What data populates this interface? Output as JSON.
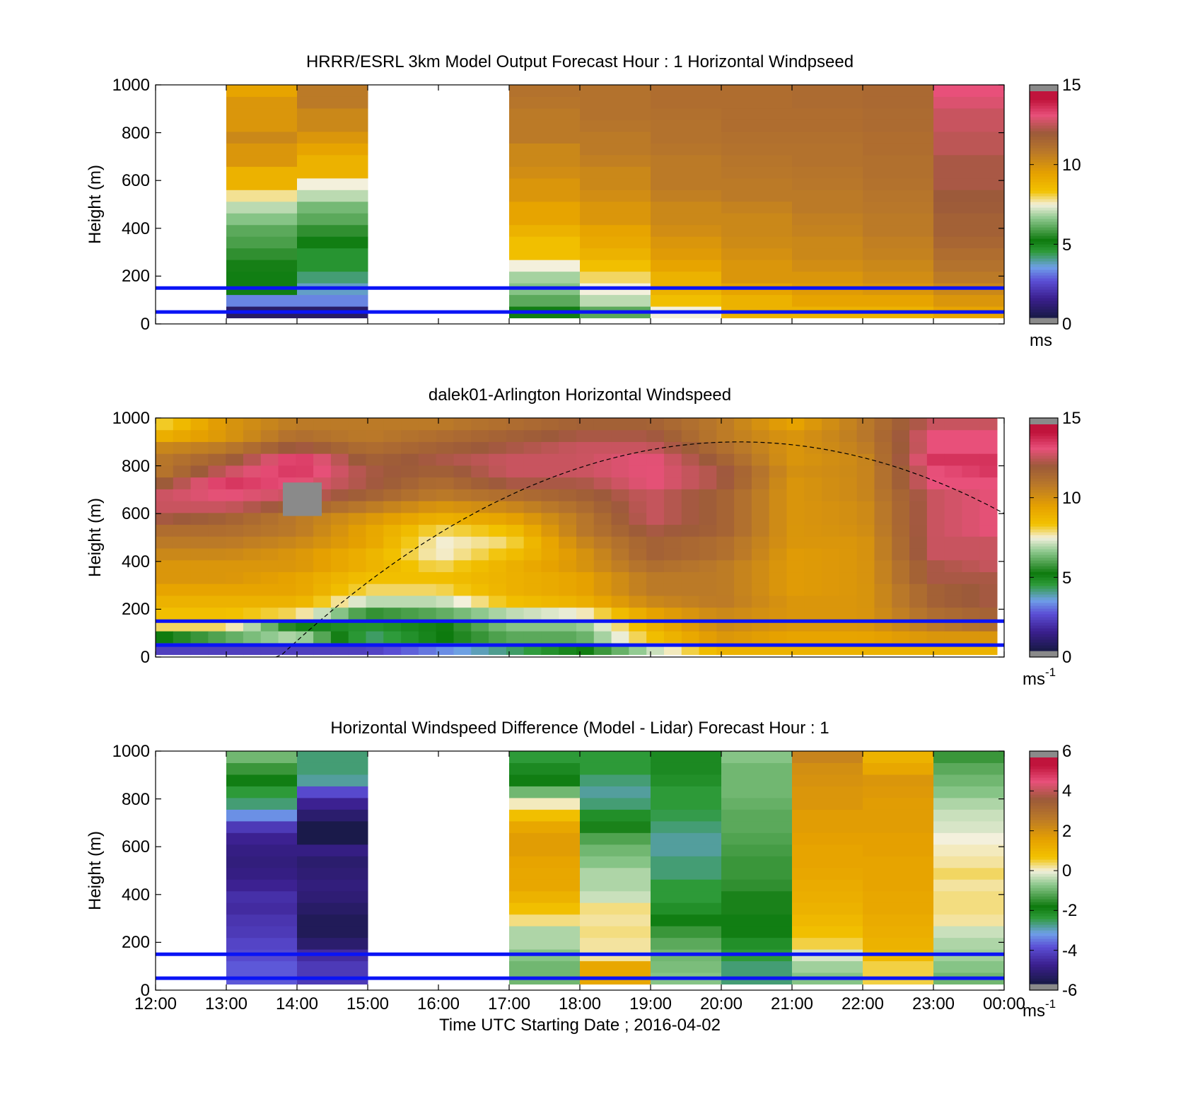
{
  "colorbar_palette": [
    "#1a1a4a",
    "#3b1f8e",
    "#5b4fd6",
    "#6fa0e8",
    "#2e9b3a",
    "#0d7a0d",
    "#8fc98f",
    "#f3f0dc",
    "#f2c200",
    "#e6a100",
    "#b8772a",
    "#9c5a3a",
    "#e8507a",
    "#c0143c",
    "#8a8a8a"
  ],
  "xlabel": "Time UTC  Starting Date ; 2016-04-02",
  "x_ticks": [
    "12:00",
    "13:00",
    "14:00",
    "15:00",
    "16:00",
    "17:00",
    "18:00",
    "19:00",
    "20:00",
    "21:00",
    "22:00",
    "23:00",
    "00:00"
  ],
  "chart_data": [
    {
      "type": "heatmap",
      "title": "HRRR/ESRL 3km Model Output   Forecast Hour : 1 Horizontal Windpseed",
      "ylabel": "Height (m)",
      "y_ticks": [
        "0",
        "200",
        "400",
        "600",
        "800",
        "1000"
      ],
      "ylim": [
        0,
        1000
      ],
      "x_hours": [
        12,
        24
      ],
      "colorbar": {
        "min": 0,
        "max": 15,
        "ticks": [
          "0",
          "5",
          "10",
          "15"
        ],
        "unit": "ms",
        "unit_sup": ""
      },
      "blue_lines_m": [
        50,
        150
      ],
      "columns": [
        {
          "start_hour": 13,
          "end_hour": 14,
          "values": [
            0.5,
            3,
            5,
            5,
            5.2,
            5.5,
            5.8,
            6,
            6.5,
            7,
            7.8,
            9,
            9,
            10,
            10,
            10.5,
            10,
            10,
            10,
            9.5
          ]
        },
        {
          "start_hour": 14,
          "end_hour": 15,
          "values": [
            0.5,
            3,
            3.5,
            4,
            4.5,
            4.5,
            5,
            5.5,
            6,
            6.3,
            7,
            7.5,
            9,
            9,
            9.5,
            10,
            10.5,
            10.5,
            11,
            11
          ]
        },
        {
          "start_hour": 17,
          "end_hour": 18,
          "values": [
            5,
            6,
            6.5,
            6.8,
            7.5,
            8.5,
            8.5,
            9,
            9.5,
            9.5,
            10,
            10,
            10.3,
            10.5,
            10.5,
            11,
            11,
            11,
            11.2,
            11.3
          ]
        },
        {
          "start_hour": 18,
          "end_hour": 19,
          "values": [
            6,
            7,
            7.5,
            8,
            8.5,
            9,
            9.3,
            9.5,
            10,
            10,
            10.3,
            10.5,
            10.5,
            10.8,
            11,
            11,
            11.2,
            11.3,
            11.3,
            11.3
          ]
        },
        {
          "start_hour": 19,
          "end_hour": 20,
          "values": [
            7.5,
            8.5,
            9,
            9,
            9.5,
            9.8,
            10,
            10.3,
            10.5,
            10.5,
            10.8,
            11,
            11,
            11,
            11.2,
            11.3,
            11.3,
            11.4,
            11.5,
            11.5
          ]
        },
        {
          "start_hour": 20,
          "end_hour": 21,
          "values": [
            9,
            9,
            9.5,
            10,
            10,
            10.2,
            10.4,
            10.5,
            10.5,
            10.7,
            11,
            11,
            11.1,
            11.2,
            11.3,
            11.4,
            11.5,
            11.5,
            11.5,
            11.5
          ]
        },
        {
          "start_hour": 21,
          "end_hour": 22,
          "values": [
            9,
            9.5,
            9.8,
            10,
            10.3,
            10.5,
            10.5,
            10.7,
            10.8,
            11,
            11,
            11.1,
            11.2,
            11.3,
            11.3,
            11.4,
            11.5,
            11.5,
            11.6,
            11.6
          ]
        },
        {
          "start_hour": 22,
          "end_hour": 23,
          "values": [
            9,
            9.5,
            10,
            10.3,
            10.5,
            10.7,
            10.8,
            11,
            11,
            11.1,
            11.2,
            11.3,
            11.4,
            11.4,
            11.5,
            11.5,
            11.6,
            11.6,
            11.7,
            11.7
          ]
        },
        {
          "start_hour": 23,
          "end_hour": 24,
          "values": [
            9.5,
            10,
            10.5,
            11,
            11.3,
            11.5,
            11.8,
            12,
            12,
            12.2,
            12.3,
            12.5,
            12.5,
            12.5,
            12.8,
            12.8,
            13,
            13,
            13.3,
            13.5
          ]
        }
      ]
    },
    {
      "type": "heatmap",
      "title": "dalek01-Arlington  Horizontal Windspeed",
      "ylabel": "Height (m)",
      "y_ticks": [
        "0",
        "200",
        "400",
        "600",
        "800",
        "1000"
      ],
      "ylim": [
        0,
        1000
      ],
      "x_hours": [
        12,
        24
      ],
      "colorbar": {
        "min": 0,
        "max": 15,
        "ticks": [
          "0",
          "5",
          "10",
          "15"
        ],
        "unit": "ms",
        "unit_sup": "-1"
      },
      "blue_lines_m": [
        50,
        150
      ],
      "curve_peak_m": 900,
      "curve_peak_hour": 20.25,
      "hourly_profiles": [
        {
          "hour": 12,
          "values": [
            2,
            5,
            8,
            8.5,
            9,
            9.5,
            10,
            10,
            10.5,
            11,
            11.5,
            12.5,
            13,
            13,
            12,
            11,
            11,
            10.5,
            9,
            8
          ]
        },
        {
          "hour": 13,
          "values": [
            2,
            6,
            8,
            8.5,
            9,
            9.5,
            10,
            10,
            10.5,
            11,
            11.5,
            12,
            13,
            13.5,
            14,
            13,
            12,
            11,
            10,
            10
          ]
        },
        {
          "hour": 14,
          "values": [
            2,
            7,
            5,
            8,
            9,
            9.5,
            9.5,
            10,
            10,
            10.5,
            11,
            11,
            12,
            13,
            13.5,
            14,
            14,
            12.5,
            11.5,
            11
          ]
        },
        {
          "hour": 15,
          "values": [
            2,
            4,
            4.5,
            5.5,
            7,
            8,
            8.5,
            9,
            9,
            9.5,
            9.5,
            10,
            11,
            12,
            12.5,
            12.5,
            12,
            11.5,
            11,
            11
          ]
        },
        {
          "hour": 16,
          "values": [
            3,
            5,
            5,
            6,
            7,
            8,
            8.5,
            8,
            7.5,
            7.5,
            8,
            9,
            10,
            11,
            11.5,
            12,
            12.5,
            12,
            11.5,
            11
          ]
        },
        {
          "hour": 17,
          "values": [
            4,
            6,
            6.5,
            7,
            8.5,
            9,
            9,
            9,
            8.5,
            8,
            8.5,
            9.5,
            10.5,
            11.5,
            12.5,
            13,
            13,
            12.5,
            12,
            11.5
          ]
        },
        {
          "hour": 18,
          "values": [
            5,
            6,
            6.5,
            7.5,
            9,
            9.5,
            9.5,
            10,
            10,
            10.5,
            11,
            11,
            11.5,
            12,
            12.5,
            13,
            13,
            13,
            12.5,
            12
          ]
        },
        {
          "hour": 19,
          "values": [
            7,
            8.5,
            9,
            9.5,
            10.5,
            11,
            11,
            11.5,
            12,
            12,
            12.5,
            13,
            13,
            13,
            13.5,
            13.5,
            13.5,
            13,
            12.5,
            12
          ]
        },
        {
          "hour": 20,
          "values": [
            9,
            10,
            10.5,
            10.5,
            11,
            11,
            11,
            11,
            11.5,
            11.5,
            12,
            12,
            12,
            12,
            12.5,
            12.5,
            12,
            11.5,
            11,
            11
          ]
        },
        {
          "hour": 21,
          "values": [
            9,
            9.5,
            10,
            10,
            10,
            9.8,
            9.8,
            9.8,
            9.8,
            10,
            10,
            10,
            10,
            10,
            10,
            10.2,
            10,
            10,
            10,
            9.5
          ]
        },
        {
          "hour": 22,
          "values": [
            9,
            9.5,
            10,
            10,
            10,
            10,
            10,
            10,
            10,
            10,
            10.2,
            10.3,
            10.3,
            10.5,
            10.5,
            10.5,
            10.5,
            10.8,
            11,
            11
          ]
        },
        {
          "hour": 23,
          "values": [
            9,
            10,
            11,
            11.5,
            12,
            12,
            12.5,
            12.5,
            13,
            13,
            13,
            13,
            13,
            13,
            13.5,
            13.5,
            14,
            13.5,
            13.5,
            13
          ]
        },
        {
          "hour": 23.9,
          "values": [
            9,
            10,
            11.5,
            12,
            12.5,
            12.5,
            12.5,
            13,
            13,
            13,
            13.5,
            13.5,
            13.5,
            13.5,
            13.5,
            14,
            14,
            13.5,
            13.5,
            13
          ]
        }
      ],
      "missing_patch": {
        "start_hour": 13.8,
        "end_hour": 14.35,
        "bottom_m": 590,
        "top_m": 730
      }
    },
    {
      "type": "heatmap",
      "title": "Horizontal Windspeed Difference (Model - Lidar) Forecast Hour : 1",
      "ylabel": "Height (m)",
      "y_ticks": [
        "0",
        "200",
        "400",
        "600",
        "800",
        "1000"
      ],
      "ylim": [
        0,
        1000
      ],
      "x_hours": [
        12,
        24
      ],
      "colorbar": {
        "min": -6,
        "max": 6,
        "ticks": [
          "-6",
          "-4",
          "-2",
          "0",
          "2",
          "4",
          "6"
        ],
        "unit": "ms",
        "unit_sup": "-1"
      },
      "blue_lines_m": [
        50,
        150
      ],
      "columns": [
        {
          "start_hour": 13,
          "end_hour": 14,
          "values": [
            -4,
            -4,
            -4.2,
            -4.3,
            -4.5,
            -4.6,
            -4.8,
            -4.7,
            -5,
            -5.2,
            -5.3,
            -5.2,
            -5,
            -4.5,
            -3.5,
            -2.8,
            -2.5,
            -2,
            -1.5,
            -1
          ]
        },
        {
          "start_hour": 14,
          "end_hour": 15,
          "values": [
            -4.5,
            -4.5,
            -4.8,
            -5.5,
            -5.8,
            -5.8,
            -5.6,
            -5.4,
            -5.3,
            -5.4,
            -5.5,
            -5.2,
            -6.5,
            -6.5,
            -5.5,
            -5,
            -4.2,
            -3,
            -2.8,
            -2.8
          ]
        },
        {
          "start_hour": 17,
          "end_hour": 18,
          "values": [
            -1,
            -1,
            -0.8,
            -0.5,
            -0.5,
            0.3,
            0.8,
            1.2,
            1.5,
            1.5,
            1.6,
            1.8,
            1.8,
            1.5,
            0.8,
            0.1,
            -1,
            -2,
            -2.2,
            -2.5
          ]
        },
        {
          "start_hour": 18,
          "end_hour": 19,
          "values": [
            1.5,
            1.5,
            0.2,
            0.2,
            0.3,
            0.2,
            0.3,
            -0.3,
            -0.5,
            -0.5,
            -0.8,
            -1,
            -1.3,
            -1.8,
            -2.3,
            -2.8,
            -3,
            -2.8,
            -2.5,
            -2.5
          ]
        },
        {
          "start_hour": 19,
          "end_hour": 20,
          "values": [
            -0.8,
            -0.9,
            -1,
            -1.2,
            -1.5,
            -2,
            -2.3,
            -2.5,
            -2.5,
            -2.8,
            -2.8,
            -3,
            -3,
            -2.8,
            -2.6,
            -2.5,
            -2.5,
            -2.3,
            -2.2,
            -2.2
          ]
        },
        {
          "start_hour": 20,
          "end_hour": 21,
          "values": [
            -2.8,
            -2.8,
            -2.5,
            -2.3,
            -2,
            -2,
            -1.8,
            -1.8,
            -1.6,
            -1.5,
            -1.5,
            -1.4,
            -1.3,
            -1.2,
            -1.2,
            -1.1,
            -1,
            -1,
            -1,
            -0.8
          ]
        },
        {
          "start_hour": 21,
          "end_hour": 22,
          "values": [
            -0.8,
            -0.6,
            -0.2,
            0.5,
            0.8,
            1,
            1.2,
            1.3,
            1.4,
            1.5,
            1.6,
            1.6,
            1.7,
            1.8,
            1.8,
            2,
            2,
            2.1,
            2.2,
            2.5
          ]
        },
        {
          "start_hour": 22,
          "end_hour": 23,
          "values": [
            0.5,
            0.5,
            1,
            1.2,
            1.3,
            1.4,
            1.5,
            1.5,
            1.6,
            1.6,
            1.6,
            1.7,
            1.7,
            1.8,
            1.8,
            1.8,
            1.9,
            2,
            1.5,
            1.2
          ]
        },
        {
          "start_hour": 23,
          "end_hour": 24,
          "values": [
            -1,
            -0.8,
            -0.6,
            -0.5,
            -0.3,
            0.2,
            0.3,
            0.3,
            0.2,
            0.4,
            0.2,
            0.1,
            0,
            -0.2,
            -0.3,
            -0.5,
            -0.8,
            -1,
            -1.2,
            -1.5
          ]
        }
      ]
    }
  ]
}
